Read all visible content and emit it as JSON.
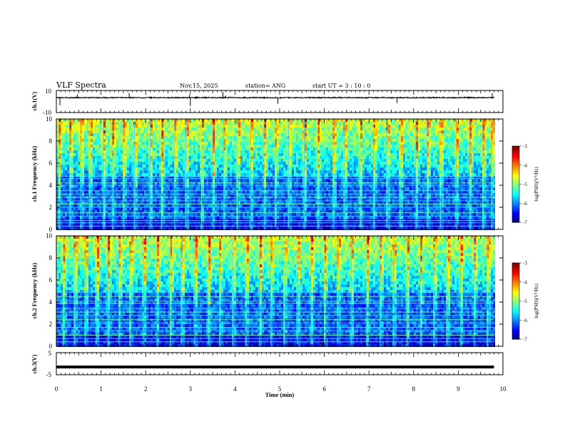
{
  "header": {
    "title": "VLF Spectra",
    "date": "Nov.15, 2025",
    "station": "station= ANG",
    "start": "start  UT =   3  : 10 : 0"
  },
  "chart_data": [
    {
      "type": "line",
      "name": "ch1-waveform",
      "ylabel": "ch.1(V)",
      "ylim": [
        -10,
        10
      ],
      "yticks": [
        "10",
        "-10"
      ],
      "x_range_min": [
        0,
        9.8
      ],
      "baseline_v": 3.5,
      "noise_v": 0.5,
      "spikes": [
        {
          "t": 0.08,
          "v": -3.5
        },
        {
          "t": 0.47,
          "v": 6.5
        },
        {
          "t": 1.63,
          "v": 7.5
        },
        {
          "t": 2.98,
          "v": 6.0
        },
        {
          "t": 3.0,
          "v": -4.0
        },
        {
          "t": 3.73,
          "v": 8.5
        },
        {
          "t": 3.79,
          "v": 5.5
        },
        {
          "t": 4.96,
          "v": -2.0
        },
        {
          "t": 7.63,
          "v": -1.5
        },
        {
          "t": 9.76,
          "v": 7.5
        }
      ]
    },
    {
      "type": "heatmap",
      "name": "ch1-spectrogram",
      "ylabel": "ch.1 Frequency (kHz)",
      "ylim": [
        0,
        10
      ],
      "yticks": [
        "0",
        "2",
        "4",
        "6",
        "8",
        "10"
      ],
      "x_range_min": [
        0,
        9.8
      ],
      "colorbar": {
        "label": "log(PSD)(V²/Hz)",
        "range": [
          -7,
          -3
        ],
        "ticks": [
          "-3",
          "-4",
          "-5",
          "-6",
          "-7"
        ]
      },
      "tone_lines_khz": [
        0.3,
        0.6,
        0.8,
        1.2,
        1.5,
        2.0,
        2.3,
        2.6,
        2.9,
        3.2,
        3.5,
        4.0,
        4.2,
        4.6,
        4.8
      ],
      "burst_times_min": [
        0.05,
        0.3,
        0.55,
        0.75,
        1.05,
        1.25,
        1.5,
        1.75,
        2.1,
        2.35,
        2.65,
        2.9,
        3.25,
        3.5,
        3.75,
        4.05,
        4.35,
        4.65,
        4.9,
        5.2,
        5.55,
        5.85,
        6.2,
        6.45,
        6.8,
        7.1,
        7.4,
        7.7,
        8.05,
        8.3,
        8.6,
        8.95,
        9.25,
        9.55,
        9.75
      ],
      "seed": 7
    },
    {
      "type": "heatmap",
      "name": "ch2-spectrogram",
      "ylabel": "ch.2 Frequency (kHz)",
      "ylim": [
        0,
        10
      ],
      "yticks": [
        "0",
        "2",
        "4",
        "6",
        "8",
        "10"
      ],
      "x_range_min": [
        0,
        9.8
      ],
      "colorbar": {
        "label": "log(PSD)(V²/Hz)",
        "range": [
          -7,
          -3
        ],
        "ticks": [
          "-3",
          "-4",
          "-5",
          "-6",
          "-7"
        ]
      },
      "tone_lines_khz": [
        0.4,
        0.7,
        1.0,
        1.4,
        1.7,
        2.1,
        2.4,
        2.8,
        3.1,
        3.4,
        3.9,
        4.1,
        4.5,
        4.9
      ],
      "burst_times_min": [
        0.15,
        0.4,
        0.65,
        0.9,
        1.15,
        1.4,
        1.65,
        1.95,
        2.25,
        2.55,
        2.8,
        3.1,
        3.4,
        3.65,
        3.95,
        4.25,
        4.55,
        4.8,
        5.1,
        5.4,
        5.7,
        6.0,
        6.3,
        6.6,
        6.95,
        7.25,
        7.55,
        7.85,
        8.15,
        8.45,
        8.75,
        9.05,
        9.35,
        9.65
      ],
      "seed": 13
    },
    {
      "type": "line",
      "name": "ch3-waveform",
      "ylabel": "ch.3(V)",
      "ylim": [
        -5,
        5
      ],
      "yticks": [
        "5",
        "-5"
      ],
      "x_range_min": [
        0,
        9.8
      ],
      "baseline_v": -1.5
    }
  ],
  "xaxis": {
    "label": "Time  (min)",
    "range": [
      0,
      10
    ],
    "ticks": [
      "0",
      "1",
      "2",
      "3",
      "4",
      "5",
      "6",
      "7",
      "8",
      "9",
      "10"
    ]
  }
}
